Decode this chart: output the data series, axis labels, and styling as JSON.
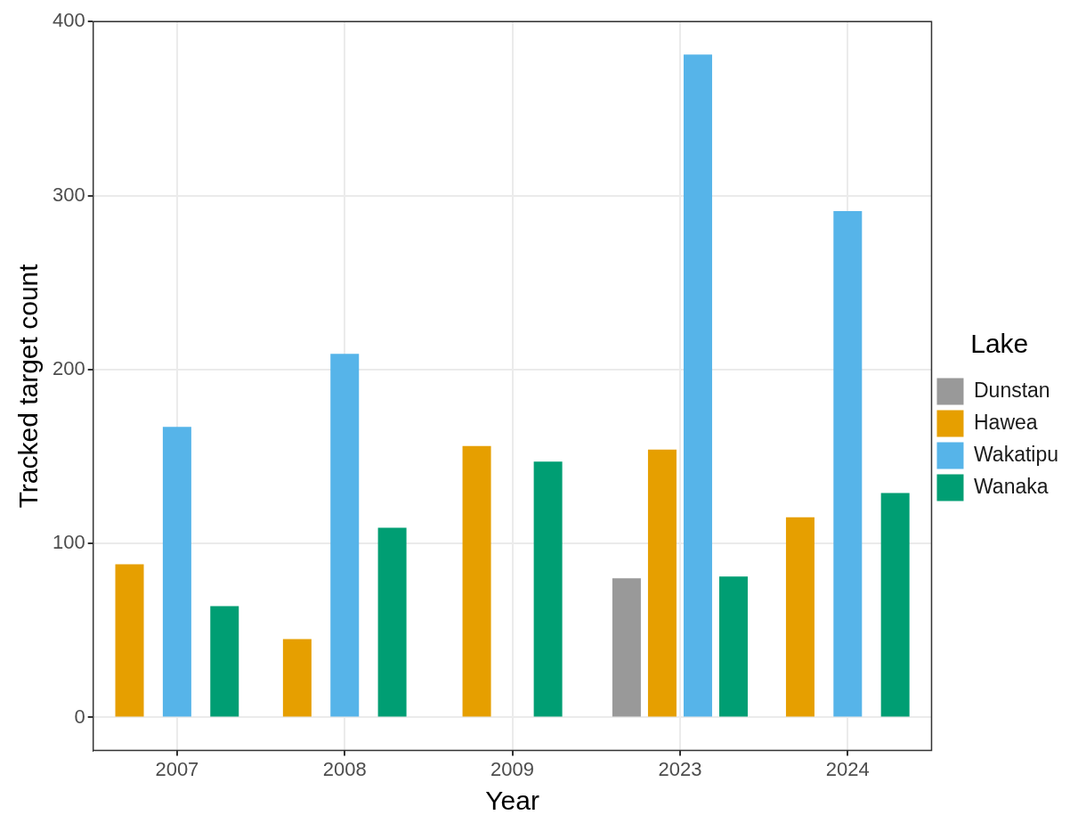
{
  "chart_data": {
    "type": "bar",
    "xlabel": "Year",
    "ylabel": "Tracked target count",
    "legend_title": "Lake",
    "categories": [
      "2007",
      "2008",
      "2009",
      "2023",
      "2024"
    ],
    "series": [
      {
        "name": "Dunstan",
        "color": "#999999",
        "values": [
          null,
          null,
          null,
          80,
          null
        ]
      },
      {
        "name": "Hawea",
        "color": "#e69f00",
        "values": [
          88,
          45,
          156,
          154,
          115
        ]
      },
      {
        "name": "Wakatipu",
        "color": "#56b4e9",
        "values": [
          167,
          209,
          null,
          381,
          291
        ]
      },
      {
        "name": "Wanaka",
        "color": "#009e73",
        "values": [
          64,
          109,
          147,
          81,
          129
        ]
      }
    ],
    "ylim": [
      -19,
      400
    ],
    "yticks": [
      0,
      100,
      200,
      300,
      400
    ],
    "grid": true,
    "legend": "right"
  }
}
